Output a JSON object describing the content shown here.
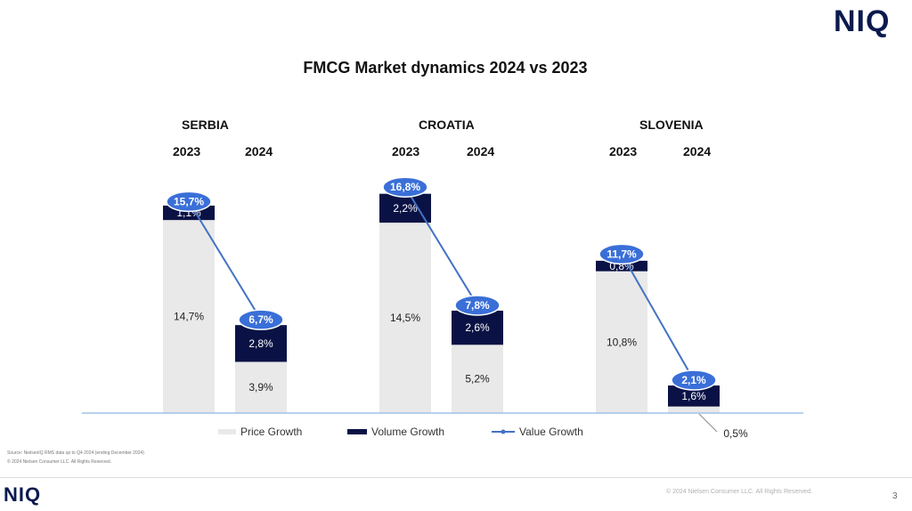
{
  "header": {
    "logo": "NIQ"
  },
  "footer": {
    "logo": "NIQ",
    "copyright": "© 2024 Nielsen Consumer LLC. All Rights Reserved.",
    "page_number": "3"
  },
  "source_note": {
    "line1": "Source: NielsenIQ RMS data up to Q4 2024 (ending December 2024)",
    "line2": "© 2024 Nielsen Consumer LLC. All Rights Reserved."
  },
  "colors": {
    "price": "#e9e9e9",
    "volume": "#0a1245",
    "value_line": "#4472c4",
    "value_bubble": "#3a6fd8",
    "axis": "#9dc3e6"
  },
  "chart_data": {
    "type": "bar",
    "stacked": true,
    "title": "FMCG Market dynamics 2024 vs 2023",
    "groups": [
      "SERBIA",
      "CROATIA",
      "SLOVENIA"
    ],
    "categories": [
      "2023",
      "2024"
    ],
    "unit": "%",
    "series": [
      {
        "name": "Price Growth",
        "kind": "bar",
        "values": [
          [
            14.7,
            3.9
          ],
          [
            14.5,
            5.2
          ],
          [
            10.8,
            0.5
          ]
        ],
        "labels": [
          [
            "14,7%",
            "3,9%"
          ],
          [
            "14,5%",
            "5,2%"
          ],
          [
            "10,8%",
            "0,5%"
          ]
        ]
      },
      {
        "name": "Volume Growth",
        "kind": "bar",
        "values": [
          [
            1.1,
            2.8
          ],
          [
            2.2,
            2.6
          ],
          [
            0.8,
            1.6
          ]
        ],
        "labels": [
          [
            "1,1%",
            "2,8%"
          ],
          [
            "2,2%",
            "2,6%"
          ],
          [
            "0,8%",
            "1,6%"
          ]
        ]
      },
      {
        "name": "Value Growth",
        "kind": "line",
        "values": [
          [
            15.7,
            6.7
          ],
          [
            16.8,
            7.8
          ],
          [
            11.7,
            2.1
          ]
        ],
        "labels": [
          [
            "15,7%",
            "6,7%"
          ],
          [
            "16,8%",
            "7,8%"
          ],
          [
            "11,7%",
            "2,1%"
          ]
        ]
      }
    ],
    "legend": {
      "position": "bottom",
      "items": [
        "Price Growth",
        "Volume Growth",
        "Value Growth"
      ]
    },
    "ylim": [
      0,
      17
    ]
  }
}
